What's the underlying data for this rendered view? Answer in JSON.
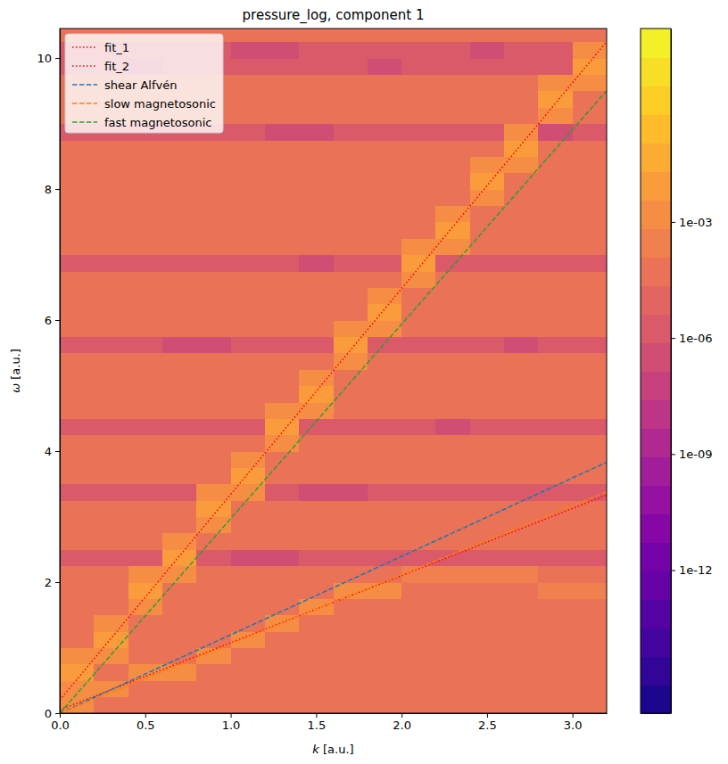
{
  "chart_data": {
    "type": "heatmap",
    "title": "pressure_log, component 1",
    "x_label": "k [a.u.]",
    "y_label": "ω [a.u.]",
    "xlim": [
      0,
      3.2
    ],
    "ylim": [
      0,
      10.45
    ],
    "xticks": [
      {
        "value": 0,
        "label": "0.0"
      },
      0.5,
      {
        "value": 1,
        "label": "1.0"
      },
      1.5,
      {
        "value": 2,
        "label": "2.0"
      },
      2.5,
      {
        "value": 3,
        "label": "3.0"
      }
    ],
    "yticks": [
      0,
      2,
      4,
      6,
      8,
      10
    ],
    "grid": false,
    "legend": "upper left",
    "colorbar_lim": [
      2e-16,
      100
    ],
    "colorbar_ticks": [
      {
        "value": 0.001,
        "label": "1e-03"
      },
      {
        "value": 1e-06,
        "label": "1e-06"
      },
      {
        "value": 1e-09,
        "label": "1e-09"
      },
      {
        "value": 1e-12,
        "label": "1e-12"
      }
    ],
    "x": [
      0.1,
      0.3,
      0.5,
      0.7,
      0.9,
      1.1,
      1.3,
      1.5,
      1.7,
      1.9,
      2.1,
      2.3,
      2.5,
      2.7,
      2.9,
      3.1
    ],
    "y": [
      0.125,
      0.375,
      0.625,
      0.875,
      1.125,
      1.375,
      1.625,
      1.875,
      2.125,
      2.375,
      2.625,
      2.875,
      3.125,
      3.375,
      3.625,
      3.875,
      4.125,
      4.375,
      4.625,
      4.875,
      5.125,
      5.375,
      5.625,
      5.875,
      6.125,
      6.375,
      6.625,
      6.875,
      7.125,
      7.375,
      7.625,
      7.875,
      8.125,
      8.375,
      8.625,
      8.875,
      9.125,
      9.375,
      9.625,
      9.875,
      10.125,
      10.375
    ],
    "z": [
      [
        0.002,
        0.0001,
        0.0001,
        0.0001,
        0.0001,
        0.0001,
        0.0001,
        0.0001,
        0.0001,
        0.0001,
        0.0001,
        0.0001,
        0.0001,
        0.0001,
        0.0001,
        0.0001
      ],
      [
        0.003,
        0.002,
        4e-05,
        4e-05,
        4e-05,
        4e-05,
        4e-05,
        4e-05,
        4e-05,
        4e-05,
        4e-05,
        4e-05,
        4e-05,
        4e-05,
        4e-05,
        4e-05
      ],
      [
        0.01,
        0.0001,
        0.002,
        0.002,
        0.0001,
        0.0001,
        0.0001,
        0.0001,
        0.0001,
        0.0001,
        0.0001,
        0.0001,
        0.0001,
        0.0001,
        0.0001,
        0.0001
      ],
      [
        0.003,
        0.003,
        4e-05,
        4e-05,
        0.002,
        4e-05,
        4e-05,
        4e-05,
        4e-05,
        4e-05,
        4e-05,
        4e-05,
        4e-05,
        4e-05,
        4e-05,
        4e-05
      ],
      [
        0.0001,
        0.01,
        0.0001,
        0.0001,
        0.0001,
        0.002,
        0.0001,
        0.0001,
        0.0001,
        0.0001,
        0.0001,
        0.0001,
        0.0001,
        0.0001,
        0.0001,
        0.0001
      ],
      [
        4e-05,
        0.003,
        4e-05,
        4e-05,
        4e-05,
        4e-05,
        0.002,
        4e-05,
        4e-05,
        4e-05,
        4e-05,
        4e-05,
        4e-05,
        4e-05,
        4e-05,
        4e-05
      ],
      [
        0.0001,
        0.0001,
        0.003,
        0.0001,
        0.0001,
        0.0001,
        0.0001,
        0.002,
        0.0001,
        0.0001,
        0.0001,
        0.0001,
        0.0001,
        0.0001,
        0.0001,
        0.0001
      ],
      [
        4e-05,
        4e-05,
        0.01,
        4e-05,
        4e-05,
        4e-05,
        4e-05,
        4e-05,
        0.002,
        0.002,
        4e-05,
        4e-05,
        4e-05,
        4e-05,
        0.0005,
        0.0005
      ],
      [
        3e-05,
        3e-05,
        0.003,
        0.003,
        3e-05,
        3e-05,
        3e-05,
        3e-05,
        3e-05,
        3e-05,
        0.0005,
        0.0005,
        0.0005,
        0.0005,
        3e-05,
        3e-05
      ],
      [
        2e-06,
        2e-06,
        2e-06,
        0.01,
        2e-06,
        2e-07,
        2e-07,
        2e-06,
        2e-06,
        2e-06,
        2e-06,
        2e-06,
        2e-06,
        2e-06,
        2e-06,
        2e-06
      ],
      [
        3e-05,
        3e-05,
        3e-05,
        0.003,
        3e-05,
        3e-05,
        3e-05,
        3e-05,
        3e-05,
        3e-05,
        3e-05,
        3e-05,
        3e-05,
        3e-05,
        3e-05,
        3e-05
      ],
      [
        3e-05,
        3e-05,
        3e-05,
        3e-05,
        0.003,
        3e-05,
        3e-05,
        3e-05,
        3e-05,
        3e-05,
        3e-05,
        3e-05,
        3e-05,
        3e-05,
        3e-05,
        3e-05
      ],
      [
        3e-05,
        3e-05,
        3e-05,
        3e-05,
        0.01,
        3e-05,
        3e-05,
        3e-05,
        3e-05,
        3e-05,
        3e-05,
        3e-05,
        3e-05,
        3e-05,
        3e-05,
        3e-05
      ],
      [
        2e-06,
        2e-06,
        2e-06,
        2e-06,
        0.003,
        0.003,
        2e-06,
        2e-07,
        2e-07,
        2e-06,
        2e-06,
        2e-06,
        2e-06,
        2e-06,
        2e-06,
        2e-06
      ],
      [
        3e-05,
        3e-05,
        3e-05,
        3e-05,
        3e-05,
        0.01,
        3e-05,
        3e-05,
        3e-05,
        3e-05,
        3e-05,
        3e-05,
        3e-05,
        3e-05,
        3e-05,
        3e-05
      ],
      [
        3e-05,
        3e-05,
        3e-05,
        3e-05,
        3e-05,
        0.003,
        3e-05,
        3e-05,
        3e-05,
        3e-05,
        3e-05,
        3e-05,
        3e-05,
        3e-05,
        3e-05,
        3e-05
      ],
      [
        3e-05,
        3e-05,
        3e-05,
        3e-05,
        3e-05,
        3e-05,
        0.003,
        3e-05,
        3e-05,
        3e-05,
        3e-05,
        3e-05,
        3e-05,
        3e-05,
        3e-05,
        3e-05
      ],
      [
        2e-06,
        2e-06,
        2e-06,
        2e-06,
        2e-06,
        2e-06,
        0.01,
        2e-06,
        2e-06,
        2e-06,
        2e-06,
        2e-07,
        2e-06,
        2e-06,
        2e-06,
        2e-06
      ],
      [
        3e-05,
        3e-05,
        3e-05,
        3e-05,
        3e-05,
        3e-05,
        0.003,
        0.003,
        3e-05,
        3e-05,
        3e-05,
        3e-05,
        3e-05,
        3e-05,
        3e-05,
        3e-05
      ],
      [
        3e-05,
        3e-05,
        3e-05,
        3e-05,
        3e-05,
        3e-05,
        3e-05,
        0.01,
        3e-05,
        3e-05,
        3e-05,
        3e-05,
        3e-05,
        3e-05,
        3e-05,
        3e-05
      ],
      [
        3e-05,
        3e-05,
        3e-05,
        3e-05,
        3e-05,
        3e-05,
        3e-05,
        0.003,
        3e-05,
        3e-05,
        3e-05,
        3e-05,
        3e-05,
        3e-05,
        3e-05,
        3e-05
      ],
      [
        3e-05,
        3e-05,
        3e-05,
        3e-05,
        3e-05,
        3e-05,
        3e-05,
        3e-05,
        0.003,
        3e-05,
        3e-05,
        3e-05,
        3e-05,
        3e-05,
        3e-05,
        3e-05
      ],
      [
        2e-06,
        2e-06,
        2e-06,
        2e-07,
        2e-07,
        2e-06,
        2e-06,
        2e-06,
        0.01,
        2e-06,
        2e-06,
        2e-06,
        2e-06,
        2e-07,
        2e-06,
        2e-06
      ],
      [
        3e-05,
        3e-05,
        3e-05,
        3e-05,
        3e-05,
        3e-05,
        3e-05,
        3e-05,
        0.003,
        0.003,
        3e-05,
        3e-05,
        3e-05,
        3e-05,
        3e-05,
        3e-05
      ],
      [
        3e-05,
        3e-05,
        3e-05,
        3e-05,
        3e-05,
        3e-05,
        3e-05,
        3e-05,
        3e-05,
        0.01,
        3e-05,
        3e-05,
        3e-05,
        3e-05,
        3e-05,
        3e-05
      ],
      [
        3e-05,
        3e-05,
        3e-05,
        3e-05,
        3e-05,
        3e-05,
        3e-05,
        3e-05,
        3e-05,
        0.003,
        3e-05,
        3e-05,
        3e-05,
        3e-05,
        3e-05,
        3e-05
      ],
      [
        3e-05,
        3e-05,
        3e-05,
        3e-05,
        3e-05,
        3e-05,
        3e-05,
        3e-05,
        3e-05,
        3e-05,
        0.003,
        3e-05,
        3e-05,
        3e-05,
        3e-05,
        3e-05
      ],
      [
        2e-06,
        2e-06,
        2e-06,
        2e-06,
        2e-06,
        2e-06,
        2e-06,
        2e-07,
        2e-06,
        2e-06,
        0.01,
        2e-06,
        2e-06,
        2e-06,
        2e-06,
        2e-06
      ],
      [
        3e-05,
        3e-05,
        3e-05,
        3e-05,
        3e-05,
        3e-05,
        3e-05,
        3e-05,
        3e-05,
        3e-05,
        0.003,
        0.003,
        3e-05,
        3e-05,
        3e-05,
        3e-05
      ],
      [
        3e-05,
        3e-05,
        3e-05,
        3e-05,
        3e-05,
        3e-05,
        3e-05,
        3e-05,
        3e-05,
        3e-05,
        3e-05,
        0.01,
        3e-05,
        3e-05,
        3e-05,
        3e-05
      ],
      [
        3e-05,
        3e-05,
        3e-05,
        3e-05,
        3e-05,
        3e-05,
        3e-05,
        3e-05,
        3e-05,
        3e-05,
        3e-05,
        0.003,
        3e-05,
        3e-05,
        3e-05,
        3e-05
      ],
      [
        3e-05,
        3e-05,
        3e-05,
        3e-05,
        3e-05,
        3e-05,
        3e-05,
        3e-05,
        3e-05,
        3e-05,
        3e-05,
        3e-05,
        0.003,
        3e-05,
        3e-05,
        3e-05
      ],
      [
        3e-05,
        3e-05,
        3e-05,
        3e-05,
        3e-05,
        3e-05,
        3e-05,
        3e-05,
        3e-05,
        3e-05,
        3e-05,
        3e-05,
        0.01,
        3e-05,
        3e-05,
        3e-05
      ],
      [
        3e-05,
        3e-05,
        3e-05,
        3e-05,
        3e-05,
        3e-05,
        3e-05,
        3e-05,
        3e-05,
        3e-05,
        3e-05,
        3e-05,
        0.003,
        0.003,
        3e-05,
        3e-05
      ],
      [
        3e-05,
        3e-05,
        3e-05,
        3e-05,
        3e-05,
        3e-05,
        3e-05,
        3e-05,
        3e-05,
        3e-05,
        3e-05,
        3e-05,
        3e-05,
        0.01,
        3e-05,
        3e-05
      ],
      [
        2e-06,
        2e-06,
        2e-06,
        2e-06,
        2e-06,
        2e-06,
        2e-07,
        2e-07,
        2e-06,
        2e-06,
        2e-06,
        2e-06,
        2e-06,
        0.003,
        2e-07,
        2e-06
      ],
      [
        3e-05,
        3e-05,
        3e-05,
        3e-05,
        3e-05,
        3e-05,
        3e-05,
        3e-05,
        3e-05,
        3e-05,
        3e-05,
        3e-05,
        3e-05,
        3e-05,
        0.003,
        3e-05
      ],
      [
        3e-05,
        3e-05,
        3e-05,
        3e-05,
        3e-05,
        3e-05,
        3e-05,
        3e-05,
        3e-05,
        3e-05,
        3e-05,
        3e-05,
        3e-05,
        3e-05,
        0.01,
        3e-05
      ],
      [
        3e-05,
        3e-05,
        3e-05,
        3e-05,
        3e-05,
        3e-05,
        3e-05,
        3e-05,
        3e-05,
        3e-05,
        3e-05,
        3e-05,
        3e-05,
        3e-05,
        0.003,
        0.003
      ],
      [
        2e-06,
        2e-06,
        2e-07,
        2e-06,
        2e-06,
        2e-06,
        2e-06,
        2e-06,
        2e-06,
        2e-07,
        2e-06,
        2e-06,
        2e-06,
        2e-06,
        2e-06,
        0.01
      ],
      [
        2e-06,
        2e-06,
        2e-06,
        2e-06,
        2e-06,
        2e-07,
        2e-07,
        2e-06,
        2e-06,
        2e-06,
        2e-06,
        2e-06,
        2e-07,
        2e-06,
        2e-06,
        0.003
      ],
      [
        3e-05,
        3e-05,
        3e-05,
        3e-05,
        3e-05,
        3e-05,
        3e-05,
        3e-05,
        3e-05,
        3e-05,
        3e-05,
        3e-05,
        3e-05,
        3e-05,
        3e-05,
        3e-05
      ]
    ],
    "series": [
      {
        "name": "fit_1",
        "type": "line",
        "color": "#ff0000",
        "line_style": "dotted",
        "x": [
          0,
          3.2
        ],
        "values": [
          0.2,
          10.25
        ]
      },
      {
        "name": "fit_2",
        "type": "line",
        "color": "#ff0000",
        "line_style": "dotted",
        "x": [
          0,
          3.2
        ],
        "values": [
          0.05,
          3.33
        ]
      },
      {
        "name": "shear Alfvén",
        "type": "line",
        "color": "#1f77b4",
        "line_style": "dashed",
        "x": [
          0,
          3.2
        ],
        "values": [
          0,
          3.83
        ]
      },
      {
        "name": "slow magnetosonic",
        "type": "line",
        "color": "#ff7f0e",
        "line_style": "dashed",
        "x": [
          0,
          3.2
        ],
        "values": [
          0,
          3.38
        ]
      },
      {
        "name": "fast magnetosonic",
        "type": "line",
        "color": "#2ca02c",
        "line_style": "dashed",
        "x": [
          0,
          3.2
        ],
        "values": [
          0,
          9.5
        ]
      }
    ]
  }
}
